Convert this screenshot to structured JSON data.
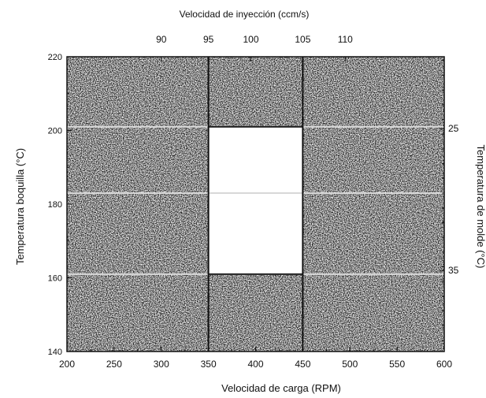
{
  "chart_data": {
    "type": "heatmap",
    "title": "",
    "top_axis": {
      "label": "Velocidad de inyección (ccm/s)",
      "ticks": [
        90,
        95,
        100,
        105,
        110
      ],
      "tick_positions_rpm": [
        300,
        350,
        395,
        450,
        495
      ]
    },
    "xlabel": "Velocidad de carga (RPM)",
    "xlim": [
      200,
      600
    ],
    "xticks": [
      200,
      250,
      300,
      350,
      400,
      450,
      500,
      550,
      600
    ],
    "ylabel": "Temperatura boquilla (°C)",
    "ylim": [
      140,
      220
    ],
    "yticks": [
      140,
      160,
      180,
      200,
      220
    ],
    "ytick_labels": [
      "140",
      "160",
      "180",
      "200",
      "220"
    ],
    "right_axis": {
      "label": "Temperatura de molde (°C)",
      "ticks": [
        25,
        35
      ],
      "tick_positions_boquilla": [
        200.5,
        162
      ]
    },
    "window": {
      "description": "white (defect-free) process window",
      "x_range_rpm": [
        350,
        450
      ],
      "y_range_c": [
        161,
        201
      ]
    },
    "vertical_lines_rpm": [
      350,
      450
    ],
    "horizontal_lines_c": [
      161,
      183,
      201
    ]
  }
}
